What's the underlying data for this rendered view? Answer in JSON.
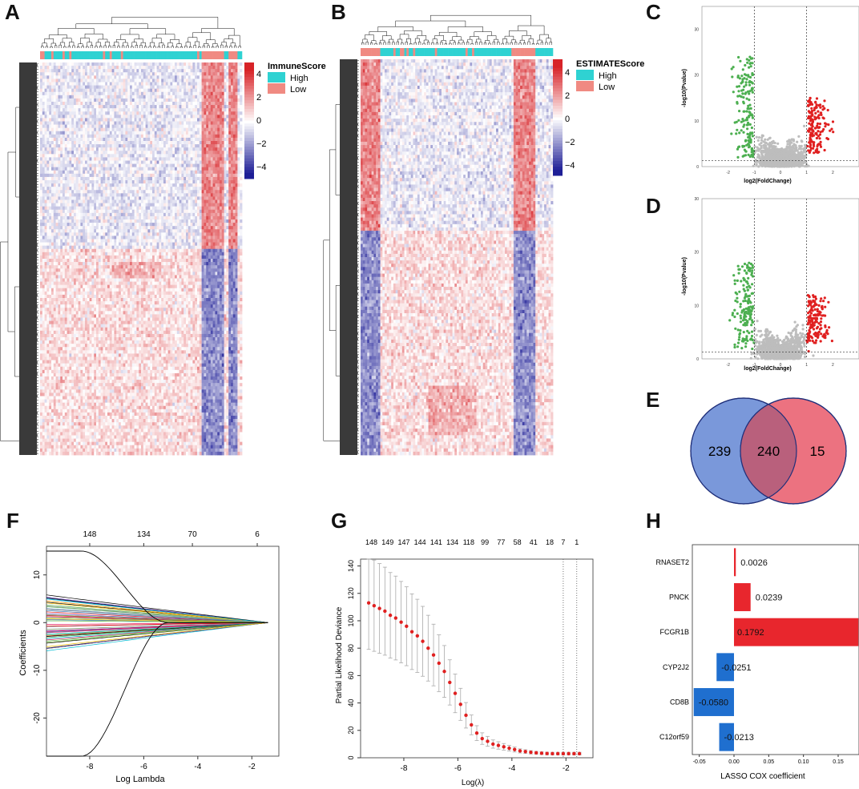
{
  "colors": {
    "high": "#2fd2d2",
    "low": "#f08a82",
    "heat_red": "#d7191c",
    "heat_blue": "#1a1a9c",
    "volcano_green": "#4caf50",
    "volcano_red": "#e02020",
    "volcano_grey": "#bdbdbd",
    "venn_blue": "#6f8fd6",
    "venn_red": "#ec7280",
    "venn_overlap": "#b9607c",
    "bar_red": "#e8262d",
    "bar_blue": "#1f6fcf",
    "cv_red": "#e02020"
  },
  "panels": {
    "A": {
      "label": "A",
      "legend_title": "ImmuneScore",
      "legend_items": [
        "High",
        "Low"
      ],
      "scale_ticks": [
        "4",
        "2",
        "0",
        "−2",
        "−4"
      ]
    },
    "B": {
      "label": "B",
      "legend_title": "ESTIMATEScore",
      "legend_items": [
        "High",
        "Low"
      ],
      "scale_ticks": [
        "4",
        "2",
        "0",
        "−2",
        "−4"
      ]
    },
    "C": {
      "label": "C",
      "xlabel": "log2(FoldChange)",
      "ylabel": "-log10(Pvalue)"
    },
    "D": {
      "label": "D",
      "xlabel": "log2(FoldChange)",
      "ylabel": "-log10(Pvalue)"
    },
    "E": {
      "label": "E"
    },
    "F": {
      "label": "F"
    },
    "G": {
      "label": "G"
    },
    "H": {
      "label": "H"
    }
  },
  "chart_data": [
    {
      "id": "volcano_C",
      "type": "scatter",
      "title": "",
      "xlabel": "log2(FoldChange)",
      "ylabel": "-log10(Pvalue)",
      "xlim": [
        -3,
        3
      ],
      "ylim": [
        0,
        35
      ],
      "x_ticks": [
        -2,
        -1,
        0,
        1,
        2
      ],
      "y_ticks": [
        0,
        10,
        20,
        30
      ],
      "vlines": [
        -1,
        1
      ],
      "hline": 1.3
    },
    {
      "id": "volcano_D",
      "type": "scatter",
      "title": "",
      "xlabel": "log2(FoldChange)",
      "ylabel": "-log10(Pvalue)",
      "xlim": [
        -3,
        3
      ],
      "ylim": [
        0,
        30
      ],
      "x_ticks": [
        -2,
        -1,
        0,
        1,
        2
      ],
      "y_ticks": [
        0,
        10,
        20,
        30
      ],
      "vlines": [
        -1,
        1
      ],
      "hline": 1.3
    },
    {
      "id": "venn_E",
      "type": "venn",
      "sets": [
        {
          "name": "left",
          "only": 239
        },
        {
          "name": "right",
          "only": 15
        }
      ],
      "intersection": 240,
      "labels": [
        "239",
        "240",
        "15"
      ]
    },
    {
      "id": "lasso_path_F",
      "type": "line",
      "xlabel": "Log Lambda",
      "ylabel": "Coefficients",
      "xlim": [
        -9.6,
        -1
      ],
      "ylim": [
        -28,
        16
      ],
      "x_ticks": [
        -8,
        -6,
        -4,
        -2
      ],
      "y_ticks": [
        -20,
        -10,
        0,
        10
      ],
      "top_axis_positions": [
        -8,
        -6,
        -4.2,
        -1.8
      ],
      "top_axis_labels": [
        "148",
        "134",
        "70",
        "6"
      ]
    },
    {
      "id": "cv_G",
      "type": "scatter",
      "xlabel": "Log(λ)",
      "ylabel": "Partial Likelihood Deviance",
      "xlim": [
        -9.6,
        -1
      ],
      "ylim": [
        0,
        145
      ],
      "x_ticks": [
        -8,
        -6,
        -4,
        -2
      ],
      "y_ticks": [
        0,
        20,
        40,
        60,
        80,
        100,
        120,
        140
      ],
      "top_axis_labels": [
        "148",
        "149",
        "147",
        "144",
        "141",
        "134",
        "118",
        "99",
        "77",
        "58",
        "41",
        "18",
        "7",
        "1"
      ],
      "top_axis_positions": [
        -9.2,
        -8.6,
        -8,
        -7.4,
        -6.8,
        -6.2,
        -5.6,
        -5,
        -4.4,
        -3.8,
        -3.2,
        -2.6,
        -2.1,
        -1.6
      ],
      "vlines": [
        -2.1,
        -1.6
      ],
      "x": [
        -9.3,
        -9.1,
        -8.9,
        -8.7,
        -8.5,
        -8.3,
        -8.1,
        -7.9,
        -7.7,
        -7.5,
        -7.3,
        -7.1,
        -6.9,
        -6.7,
        -6.5,
        -6.3,
        -6.1,
        -5.9,
        -5.7,
        -5.5,
        -5.3,
        -5.1,
        -4.9,
        -4.7,
        -4.5,
        -4.3,
        -4.1,
        -3.9,
        -3.7,
        -3.5,
        -3.3,
        -3.1,
        -2.9,
        -2.7,
        -2.5,
        -2.3,
        -2.1,
        -1.9,
        -1.7,
        -1.5
      ],
      "y": [
        113,
        111,
        109,
        107,
        104,
        102,
        99,
        96,
        92,
        89,
        85,
        80,
        75,
        69,
        63,
        55,
        47,
        39,
        31,
        24,
        18,
        14,
        12,
        10,
        9,
        8,
        7,
        6,
        5,
        4.5,
        4,
        3.6,
        3.3,
        3.1,
        3,
        3,
        3,
        3,
        3,
        3
      ]
    },
    {
      "id": "lasso_coef_H",
      "type": "bar",
      "orientation": "horizontal",
      "xlabel": "LASSO COX coefficient",
      "xlim": [
        -0.06,
        0.18
      ],
      "x_ticks": [
        -0.05,
        0.0,
        0.05,
        0.1,
        0.15
      ],
      "x_tick_labels": [
        "-0.05",
        "0.00",
        "0.05",
        "0.10",
        "0.15"
      ],
      "categories": [
        "RNASET2",
        "PNCK",
        "FCGR1B",
        "CYP2J2",
        "CD8B",
        "C12orf59"
      ],
      "values": [
        0.0026,
        0.0239,
        0.1792,
        -0.0251,
        -0.058,
        -0.0213
      ],
      "value_labels": [
        "0.0026",
        "0.0239",
        "0.1792",
        "-0.0251",
        "-0.0580",
        "-0.0213"
      ]
    }
  ]
}
